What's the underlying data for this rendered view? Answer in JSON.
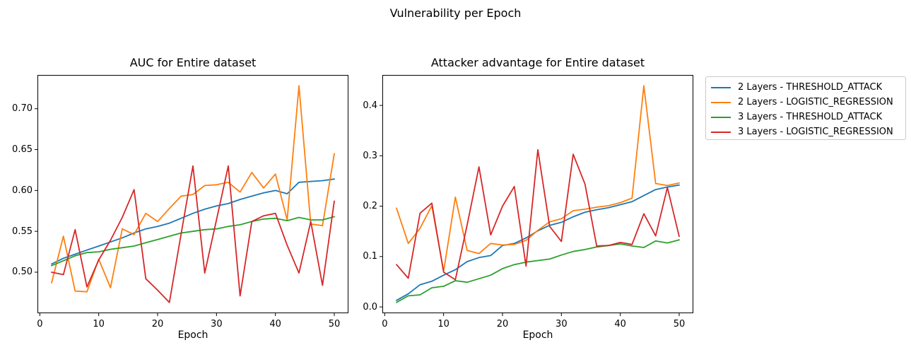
{
  "figure": {
    "suptitle": "Vulnerability per Epoch",
    "background": "#ffffff",
    "text_color": "#000000",
    "axis_color": "#000000"
  },
  "legend": {
    "position": "upper-right-outside",
    "entries": [
      {
        "label": "2 Layers - THRESHOLD_ATTACK",
        "color": "#1f77b4"
      },
      {
        "label": "2 Layers - LOGISTIC_REGRESSION",
        "color": "#ff7f0e"
      },
      {
        "label": "3 Layers - THRESHOLD_ATTACK",
        "color": "#2ca02c"
      },
      {
        "label": "3 Layers - LOGISTIC_REGRESSION",
        "color": "#d62728"
      }
    ]
  },
  "chart_data": [
    {
      "type": "line",
      "title": "AUC for Entire dataset",
      "xlabel": "Epoch",
      "ylabel": "",
      "grid": false,
      "x": [
        2,
        4,
        6,
        8,
        10,
        12,
        14,
        16,
        18,
        20,
        22,
        24,
        26,
        28,
        30,
        32,
        34,
        36,
        38,
        40,
        42,
        44,
        46,
        48,
        50
      ],
      "xlim": [
        -0.4,
        52.4
      ],
      "ylim": [
        0.4498,
        0.7413
      ],
      "xtick_values": [
        0,
        10,
        20,
        30,
        40,
        50
      ],
      "xtick_labels": [
        "0",
        "10",
        "20",
        "30",
        "40",
        "50"
      ],
      "ytick_values": [
        0.5,
        0.55,
        0.6,
        0.65,
        0.7
      ],
      "ytick_labels": [
        "0.50",
        "0.55",
        "0.60",
        "0.65",
        "0.70"
      ],
      "series": [
        {
          "name": "2 Layers - THRESHOLD_ATTACK",
          "color": "#1f77b4",
          "values": [
            0.51,
            0.517,
            0.522,
            0.527,
            0.532,
            0.537,
            0.542,
            0.548,
            0.553,
            0.556,
            0.56,
            0.566,
            0.572,
            0.577,
            0.581,
            0.584,
            0.589,
            0.593,
            0.597,
            0.6,
            0.596,
            0.61,
            0.611,
            0.612,
            0.614
          ]
        },
        {
          "name": "2 Layers - LOGISTIC_REGRESSION",
          "color": "#ff7f0e",
          "values": [
            0.487,
            0.544,
            0.477,
            0.476,
            0.516,
            0.481,
            0.553,
            0.546,
            0.572,
            0.562,
            0.578,
            0.593,
            0.595,
            0.606,
            0.607,
            0.61,
            0.598,
            0.622,
            0.603,
            0.62,
            0.564,
            0.728,
            0.559,
            0.557,
            0.645
          ]
        },
        {
          "name": "3 Layers - THRESHOLD_ATTACK",
          "color": "#2ca02c",
          "values": [
            0.508,
            0.514,
            0.52,
            0.524,
            0.525,
            0.528,
            0.53,
            0.532,
            0.536,
            0.54,
            0.544,
            0.548,
            0.55,
            0.552,
            0.553,
            0.556,
            0.558,
            0.562,
            0.565,
            0.566,
            0.563,
            0.567,
            0.564,
            0.564,
            0.568
          ]
        },
        {
          "name": "3 Layers - LOGISTIC_REGRESSION",
          "color": "#d62728",
          "values": [
            0.5,
            0.497,
            0.552,
            0.482,
            0.515,
            0.539,
            0.567,
            0.601,
            0.492,
            0.478,
            0.463,
            0.547,
            0.63,
            0.499,
            0.564,
            0.63,
            0.471,
            0.562,
            0.569,
            0.572,
            0.533,
            0.499,
            0.562,
            0.484,
            0.587
          ]
        }
      ]
    },
    {
      "type": "line",
      "title": "Attacker advantage for Entire dataset",
      "xlabel": "Epoch",
      "ylabel": "",
      "grid": false,
      "x": [
        2,
        4,
        6,
        8,
        10,
        12,
        14,
        16,
        18,
        20,
        22,
        24,
        26,
        28,
        30,
        32,
        34,
        36,
        38,
        40,
        42,
        44,
        46,
        48,
        50
      ],
      "xlim": [
        -0.4,
        52.4
      ],
      "ylim": [
        -0.0125,
        0.4605
      ],
      "xtick_values": [
        0,
        10,
        20,
        30,
        40,
        50
      ],
      "xtick_labels": [
        "0",
        "10",
        "20",
        "30",
        "40",
        "50"
      ],
      "ytick_values": [
        0.0,
        0.1,
        0.2,
        0.3,
        0.4
      ],
      "ytick_labels": [
        "0.0",
        "0.1",
        "0.2",
        "0.3",
        "0.4"
      ],
      "series": [
        {
          "name": "2 Layers - THRESHOLD_ATTACK",
          "color": "#1f77b4",
          "values": [
            0.013,
            0.026,
            0.044,
            0.051,
            0.063,
            0.074,
            0.09,
            0.098,
            0.102,
            0.122,
            0.126,
            0.137,
            0.151,
            0.162,
            0.168,
            0.179,
            0.188,
            0.193,
            0.197,
            0.203,
            0.209,
            0.221,
            0.233,
            0.238,
            0.242
          ]
        },
        {
          "name": "2 Layers - LOGISTIC_REGRESSION",
          "color": "#ff7f0e",
          "values": [
            0.196,
            0.126,
            0.156,
            0.201,
            0.071,
            0.218,
            0.112,
            0.106,
            0.126,
            0.123,
            0.124,
            0.132,
            0.152,
            0.169,
            0.175,
            0.191,
            0.194,
            0.198,
            0.201,
            0.207,
            0.216,
            0.439,
            0.245,
            0.241,
            0.246
          ]
        },
        {
          "name": "3 Layers - THRESHOLD_ATTACK",
          "color": "#2ca02c",
          "values": [
            0.009,
            0.022,
            0.024,
            0.038,
            0.041,
            0.052,
            0.049,
            0.056,
            0.063,
            0.076,
            0.084,
            0.089,
            0.092,
            0.095,
            0.103,
            0.11,
            0.114,
            0.119,
            0.122,
            0.125,
            0.121,
            0.118,
            0.131,
            0.127,
            0.133
          ]
        },
        {
          "name": "3 Layers - LOGISTIC_REGRESSION",
          "color": "#d62728",
          "values": [
            0.084,
            0.057,
            0.186,
            0.206,
            0.069,
            0.054,
            0.163,
            0.278,
            0.143,
            0.2,
            0.239,
            0.081,
            0.312,
            0.16,
            0.13,
            0.303,
            0.244,
            0.121,
            0.122,
            0.128,
            0.124,
            0.185,
            0.141,
            0.237,
            0.14
          ]
        }
      ]
    }
  ]
}
